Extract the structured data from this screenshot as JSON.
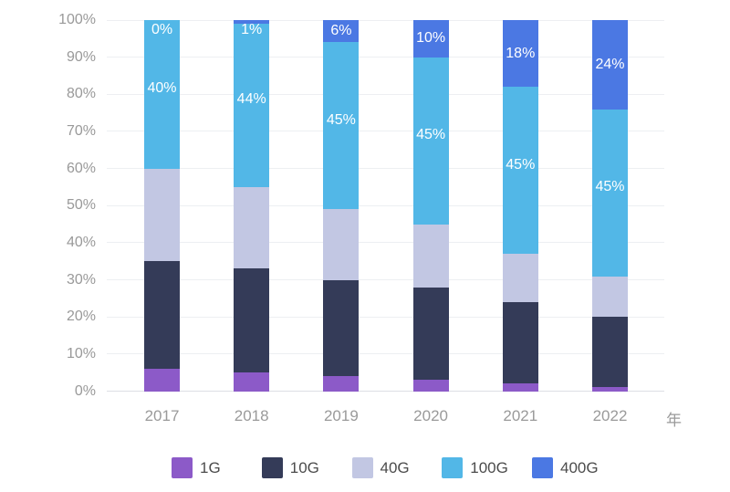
{
  "chart_data": {
    "type": "bar",
    "subtype": "stacked-percentage",
    "title": "",
    "x_axis_unit": "年",
    "categories": [
      "2017",
      "2018",
      "2019",
      "2020",
      "2021",
      "2022"
    ],
    "series": [
      {
        "name": "1G",
        "color": "#8c5ac8",
        "values": [
          6,
          5,
          4,
          3,
          2,
          1
        ]
      },
      {
        "name": "10G",
        "color": "#343b58",
        "values": [
          29,
          28,
          26,
          25,
          22,
          19
        ]
      },
      {
        "name": "40G",
        "color": "#c2c7e3",
        "values": [
          25,
          22,
          19,
          17,
          13,
          11
        ]
      },
      {
        "name": "100G",
        "color": "#52b7e7",
        "values": [
          40,
          44,
          45,
          45,
          45,
          45
        ],
        "labels": [
          "40%",
          "44%",
          "45%",
          "45%",
          "45%",
          "45%"
        ],
        "label_dy": -6
      },
      {
        "name": "400G",
        "color": "#4b78e3",
        "values": [
          0,
          1,
          6,
          10,
          18,
          24
        ],
        "labels": [
          "0%",
          "1%",
          "6%",
          "10%",
          "18%",
          "24%"
        ]
      }
    ],
    "y_ticks": [
      "0%",
      "10%",
      "20%",
      "30%",
      "40%",
      "50%",
      "60%",
      "70%",
      "80%",
      "90%",
      "100%"
    ],
    "ylim": [
      0,
      100
    ],
    "grid": true,
    "legend_position": "bottom",
    "data_label_color": "#ffffff"
  }
}
